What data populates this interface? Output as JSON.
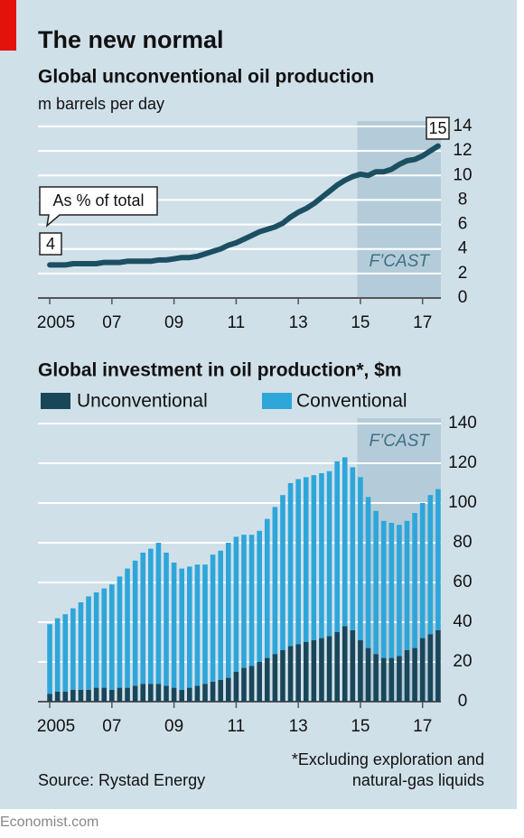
{
  "title": "The new normal",
  "footnote": [
    "*Excluding exploration and",
    "natural-gas liquids"
  ],
  "source": "Source: Rystad Energy",
  "brand": "Economist.com",
  "chart_data": [
    {
      "type": "line",
      "title": "Global unconventional oil production",
      "subtitle": "m barrels per day",
      "color": "#1b4f61",
      "x": [
        2005,
        2005.25,
        2005.5,
        2005.75,
        2006,
        2006.25,
        2006.5,
        2006.75,
        2007,
        2007.25,
        2007.5,
        2007.75,
        2008,
        2008.25,
        2008.5,
        2008.75,
        2009,
        2009.25,
        2009.5,
        2009.75,
        2010,
        2010.25,
        2010.5,
        2010.75,
        2011,
        2011.25,
        2011.5,
        2011.75,
        2012,
        2012.25,
        2012.5,
        2012.75,
        2013,
        2013.25,
        2013.5,
        2013.75,
        2014,
        2014.25,
        2014.5,
        2014.75,
        2015,
        2015.25,
        2015.5,
        2015.75,
        2016,
        2016.25,
        2016.5,
        2016.75,
        2017,
        2017.25,
        2017.5
      ],
      "values": [
        2.7,
        2.7,
        2.7,
        2.8,
        2.8,
        2.8,
        2.8,
        2.9,
        2.9,
        2.9,
        3.0,
        3.0,
        3.0,
        3.0,
        3.1,
        3.1,
        3.2,
        3.3,
        3.3,
        3.4,
        3.6,
        3.8,
        4.0,
        4.3,
        4.5,
        4.8,
        5.1,
        5.4,
        5.6,
        5.8,
        6.1,
        6.6,
        7.0,
        7.3,
        7.7,
        8.2,
        8.7,
        9.2,
        9.6,
        9.9,
        10.1,
        10.0,
        10.3,
        10.3,
        10.5,
        10.9,
        11.2,
        11.3,
        11.6,
        12.0,
        12.4
      ],
      "xlim": [
        2004.62,
        2017.59
      ],
      "xticks": [
        {
          "value": 2005,
          "label": "2005"
        },
        {
          "value": 2007,
          "label": "07"
        },
        {
          "value": 2009,
          "label": "09"
        },
        {
          "value": 2011,
          "label": "11"
        },
        {
          "value": 2013,
          "label": "13"
        },
        {
          "value": 2015,
          "label": "15"
        },
        {
          "value": 2017,
          "label": "17"
        }
      ],
      "ylim": [
        0,
        14
      ],
      "yticks": [
        0,
        2,
        4,
        6,
        8,
        10,
        12,
        14
      ],
      "grid": true,
      "forecast": {
        "label": "F’CAST",
        "start": 2014.9
      },
      "share_label": "As % of total",
      "share_values": [
        4,
        15
      ]
    },
    {
      "type": "stacked-bar",
      "title": "Global investment in oil production*, $m",
      "x": [
        2005,
        2005.25,
        2005.5,
        2005.75,
        2006,
        2006.25,
        2006.5,
        2006.75,
        2007,
        2007.25,
        2007.5,
        2007.75,
        2008,
        2008.25,
        2008.5,
        2008.75,
        2009,
        2009.25,
        2009.5,
        2009.75,
        2010,
        2010.25,
        2010.5,
        2010.75,
        2011,
        2011.25,
        2011.5,
        2011.75,
        2012,
        2012.25,
        2012.5,
        2012.75,
        2013,
        2013.25,
        2013.5,
        2013.75,
        2014,
        2014.25,
        2014.5,
        2014.75,
        2015,
        2015.25,
        2015.5,
        2015.75,
        2016,
        2016.25,
        2016.5,
        2016.75,
        2017,
        2017.25,
        2017.5
      ],
      "series": [
        {
          "name": "Unconventional",
          "color": "#1a4659",
          "values": [
            4,
            5,
            5,
            6,
            6,
            6,
            7,
            7,
            6,
            7,
            7,
            8,
            9,
            9,
            9,
            8,
            7,
            6,
            7,
            8,
            9,
            10,
            11,
            12,
            15,
            17,
            18,
            20,
            22,
            24,
            26,
            28,
            29,
            30,
            31,
            32,
            33,
            35,
            38,
            36,
            31,
            27,
            24,
            22,
            22,
            23,
            26,
            27,
            32,
            34,
            36
          ]
        },
        {
          "name": "Conventional",
          "color": "#2ea6da",
          "values": [
            35,
            37,
            39,
            41,
            44,
            47,
            48,
            50,
            53,
            56,
            60,
            63,
            66,
            68,
            71,
            67,
            63,
            61,
            61,
            61,
            60,
            64,
            65,
            68,
            68,
            67,
            66,
            66,
            70,
            74,
            78,
            82,
            83,
            83,
            83,
            83,
            83,
            86,
            85,
            82,
            82,
            76,
            72,
            69,
            68,
            66,
            65,
            68,
            68,
            70,
            71
          ]
        }
      ],
      "xlim": [
        2004.62,
        2017.59
      ],
      "xticks": [
        {
          "value": 2005,
          "label": "2005"
        },
        {
          "value": 2007,
          "label": "07"
        },
        {
          "value": 2009,
          "label": "09"
        },
        {
          "value": 2011,
          "label": "11"
        },
        {
          "value": 2013,
          "label": "13"
        },
        {
          "value": 2015,
          "label": "15"
        },
        {
          "value": 2017,
          "label": "17"
        }
      ],
      "ylim": [
        0,
        140
      ],
      "yticks": [
        0,
        20,
        40,
        60,
        80,
        100,
        120,
        140
      ],
      "grid": true,
      "forecast": {
        "label": "F’CAST",
        "start": 2014.9
      }
    }
  ]
}
